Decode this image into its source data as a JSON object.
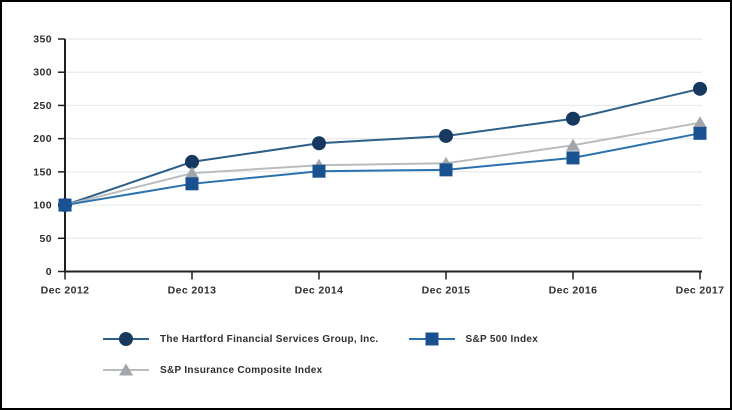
{
  "chart_data": {
    "type": "line",
    "title": "",
    "x_categories": [
      "Dec 2012",
      "Dec 2013",
      "Dec 2014",
      "Dec 2015",
      "Dec 2016",
      "Dec 2017"
    ],
    "y_ticks": [
      0,
      50,
      100,
      150,
      200,
      250,
      300,
      350
    ],
    "ylim": [
      0,
      350
    ],
    "grid": "horizontal-light",
    "legend_position": "bottom-left",
    "series": [
      {
        "name": "The Hartford Financial Services Group, Inc.",
        "marker": "circle",
        "line_color": "#2d5f88",
        "marker_color": "#17395f",
        "values": [
          100,
          165,
          193,
          204,
          230,
          275
        ]
      },
      {
        "name": "S&P Insurance Composite Index",
        "marker": "triangle",
        "line_color": "#b9bcbf",
        "marker_color": "#a2a6aa",
        "values": [
          100,
          148,
          160,
          163,
          190,
          224
        ]
      },
      {
        "name": "S&P 500 Index",
        "marker": "square",
        "line_color": "#2a72ae",
        "marker_color": "#1a5291",
        "values": [
          100,
          132,
          151,
          153,
          171,
          208
        ]
      }
    ],
    "colors": {
      "grid": "#e7e9ea",
      "axis": "#1f1f1f",
      "text": "#2e2e2e",
      "frame_border": "#000000",
      "background": "#ffffff"
    }
  }
}
